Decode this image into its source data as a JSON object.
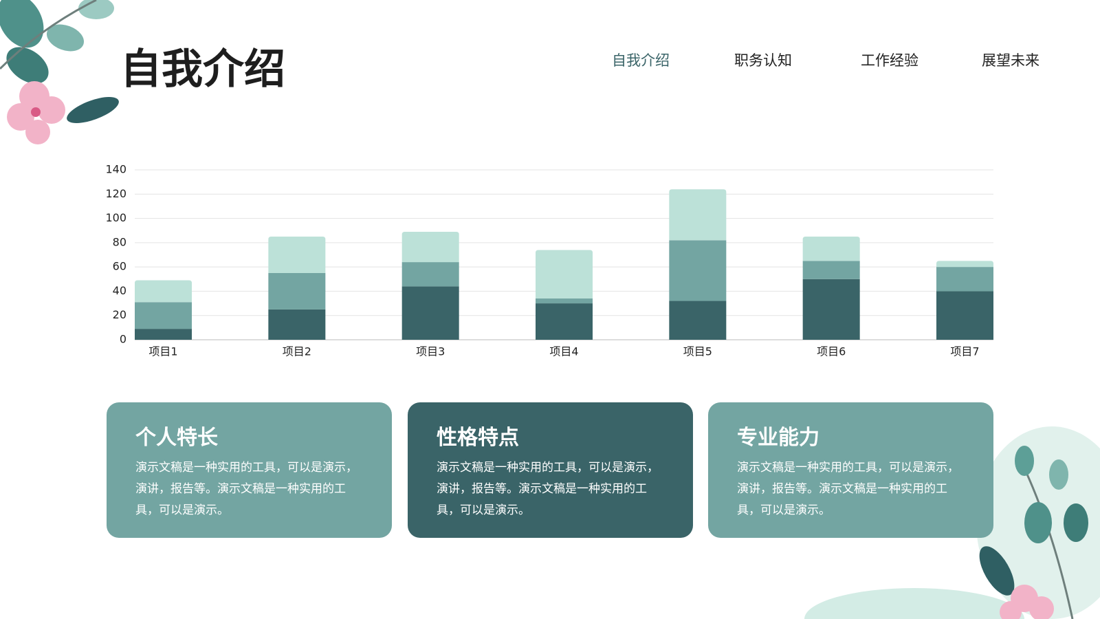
{
  "header": {
    "title": "自我介绍",
    "nav": [
      "自我介绍",
      "职务认知",
      "工作经验",
      "展望未来"
    ],
    "active": 0
  },
  "chart_data": {
    "type": "stacked_bar",
    "categories": [
      "项目1",
      "项目2",
      "项目3",
      "项目4",
      "项目5",
      "项目6",
      "项目7"
    ],
    "series": [
      {
        "color": "#3a6468",
        "values": [
          9,
          25,
          44,
          30,
          32,
          50,
          40
        ]
      },
      {
        "color": "#73a5a2",
        "values": [
          22,
          30,
          20,
          4,
          50,
          15,
          20
        ]
      },
      {
        "color": "#bce1d8",
        "values": [
          18,
          30,
          25,
          40,
          42,
          20,
          5
        ]
      }
    ],
    "ylim": [
      0,
      140
    ],
    "yticks": [
      0,
      20,
      40,
      60,
      80,
      100,
      120,
      140
    ],
    "grid": true
  },
  "cards": [
    {
      "title": "个人特长",
      "text": "演示文稿是一种实用的工具，可以是演示，演讲，报告等。演示文稿是一种实用的工具，可以是演示。",
      "color": "#73a5a2"
    },
    {
      "title": "性格特点",
      "text": "演示文稿是一种实用的工具，可以是演示，演讲，报告等。演示文稿是一种实用的工具，可以是演示。",
      "color": "#3a6468"
    },
    {
      "title": "专业能力",
      "text": "演示文稿是一种实用的工具，可以是演示，演讲，报告等。演示文稿是一种实用的工具，可以是演示。",
      "color": "#73a5a2"
    }
  ]
}
